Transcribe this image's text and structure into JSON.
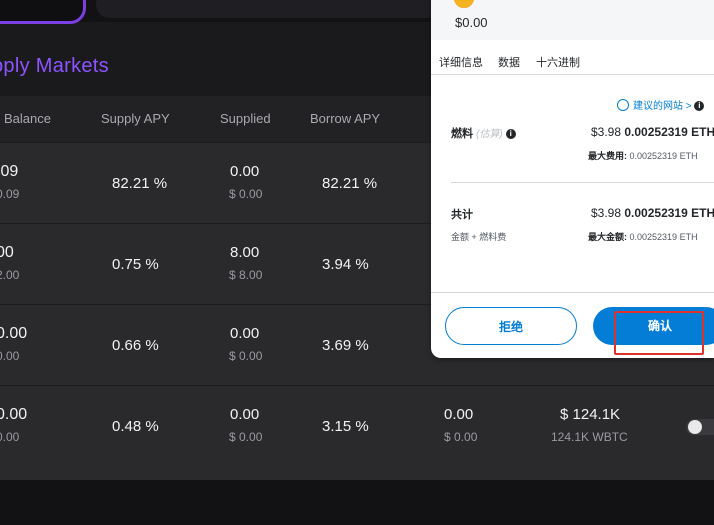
{
  "page": {
    "title": "pply Markets",
    "columns": [
      "Balance",
      "Supply APY",
      "Supplied",
      "Borrow APY"
    ]
  },
  "rows": [
    {
      "balance": ".09",
      "balance_usd": "0.09",
      "supply_apy": "82.21 %",
      "supplied": "0.00",
      "supplied_usd": "$ 0.00",
      "borrow_apy": "82.21 %"
    },
    {
      "balance": "00",
      "balance_usd": "2.00",
      "supply_apy": "0.75 %",
      "supplied": "8.00",
      "supplied_usd": "$ 8.00",
      "borrow_apy": "3.94 %"
    },
    {
      "balance": "0.00",
      "balance_usd": "0.00",
      "supply_apy": "0.66 %",
      "supplied": "0.00",
      "supplied_usd": "$ 0.00",
      "borrow_apy": "3.69 %"
    },
    {
      "balance": "0.00",
      "balance_usd": "0.00",
      "supply_apy": "0.48 %",
      "supplied": "0.00",
      "supplied_usd": "$ 0.00",
      "borrow_apy": "3.15 %",
      "col5": "0.00",
      "col5_usd": "$ 0.00",
      "col6": "$ 124.1K",
      "col6_sub": "124.1K WBTC"
    }
  ],
  "popup": {
    "amount": "$0.00",
    "tabs": [
      "详细信息",
      "数据",
      "十六进制"
    ],
    "suggest_site": "建议的网站",
    "chevron": ">",
    "gas_label": "燃料",
    "gas_estimate": "(估算)",
    "gas_usd": "$3.98",
    "gas_eth": "0.00252319 ETH",
    "max_fee_label": "最大费用:",
    "max_fee_value": "0.00252319 ETH",
    "total_label": "共计",
    "total_usd": "$3.98",
    "total_eth": "0.00252319 ETH",
    "total_sub": "金额 + 燃料费",
    "max_amount_label": "最大金额:",
    "max_amount_value": "0.00252319 ETH",
    "reject_label": "拒绝",
    "confirm_label": "确认"
  },
  "colors": {
    "accent": "#8c54ff",
    "primary_button": "#037dd6",
    "highlight_box": "#e0322d"
  }
}
